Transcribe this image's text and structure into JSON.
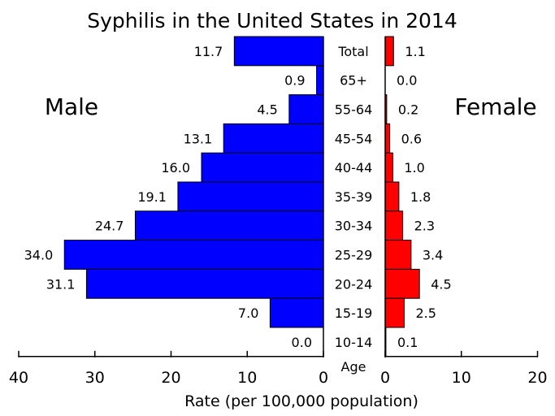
{
  "chart_data": {
    "type": "bar",
    "orientation": "horizontal-population-pyramid",
    "title": "Syphilis in the United States in 2014",
    "xlabel": "Rate (per 100,000 population)",
    "category_axis_label": "Age",
    "categories": [
      "Total",
      "65+",
      "55-64",
      "45-54",
      "40-44",
      "35-39",
      "30-34",
      "25-29",
      "20-24",
      "15-19",
      "10-14"
    ],
    "series": [
      {
        "name": "Male",
        "color": "#0000ff",
        "values": [
          11.7,
          0.9,
          4.5,
          13.1,
          16.0,
          19.1,
          24.7,
          34.0,
          31.1,
          7.0,
          0.0
        ],
        "value_labels": [
          "11.7",
          "0.9",
          "4.5",
          "13.1",
          "16.0",
          "19.1",
          "24.7",
          "34.0",
          "31.1",
          "7.0",
          "0.0"
        ],
        "xlim": [
          40,
          0
        ],
        "ticks": [
          40,
          30,
          20,
          10,
          0
        ],
        "tick_labels": [
          "40",
          "30",
          "20",
          "10",
          "0"
        ]
      },
      {
        "name": "Female",
        "color": "#ff0000",
        "values": [
          1.1,
          0.0,
          0.2,
          0.6,
          1.0,
          1.8,
          2.3,
          3.4,
          4.5,
          2.5,
          0.1
        ],
        "value_labels": [
          "1.1",
          "0.0",
          "0.2",
          "0.6",
          "1.0",
          "1.8",
          "2.3",
          "3.4",
          "4.5",
          "2.5",
          "0.1"
        ],
        "xlim": [
          0,
          20
        ],
        "ticks": [
          0,
          10,
          20
        ],
        "tick_labels": [
          "0",
          "10",
          "20"
        ]
      }
    ],
    "grid": false
  }
}
